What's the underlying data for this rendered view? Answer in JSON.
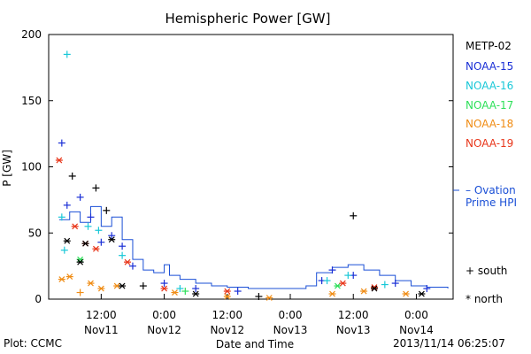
{
  "footer": {
    "left": "Plot: CCMC",
    "right": "2013/11/14 06:25:07"
  },
  "chart_data": {
    "type": "scatter",
    "title": "Hemispheric Power [GW]",
    "xlabel": "Date and Time",
    "ylabel": "P [GW]",
    "ylim": [
      0,
      200
    ],
    "yticks": [
      0,
      50,
      100,
      150,
      200
    ],
    "xlim": [
      "2013-11-11 02:00",
      "2013-11-14 07:00"
    ],
    "xticks": [
      {
        "time": "2013-11-11 12:00",
        "line1": "12:00",
        "line2": "Nov11"
      },
      {
        "time": "2013-11-12 00:00",
        "line1": "0:00",
        "line2": "Nov12"
      },
      {
        "time": "2013-11-12 12:00",
        "line1": "12:00",
        "line2": "Nov12"
      },
      {
        "time": "2013-11-13 00:00",
        "line1": "0:00",
        "line2": "Nov13"
      },
      {
        "time": "2013-11-13 12:00",
        "line1": "12:00",
        "line2": "Nov13"
      },
      {
        "time": "2013-11-14 00:00",
        "line1": "0:00",
        "line2": "Nov14"
      }
    ],
    "grid": false,
    "legend_position": "right",
    "marker_legend": [
      {
        "symbol": "+",
        "label": "south"
      },
      {
        "symbol": "*",
        "label": "north"
      }
    ],
    "series": [
      {
        "name": "METP-02",
        "color": "#000000",
        "points": []
      },
      {
        "name": "NOAA-15",
        "color": "#1a2fd6",
        "points": [
          {
            "t": "2013-11-11 04:30",
            "y": 118,
            "m": "+"
          },
          {
            "t": "2013-11-11 05:30",
            "y": 71,
            "m": "+"
          },
          {
            "t": "2013-11-11 08:00",
            "y": 77,
            "m": "+"
          },
          {
            "t": "2013-11-11 10:00",
            "y": 62,
            "m": "+"
          },
          {
            "t": "2013-11-11 12:00",
            "y": 43,
            "m": "+"
          },
          {
            "t": "2013-11-11 14:00",
            "y": 48,
            "m": "+"
          },
          {
            "t": "2013-11-11 16:00",
            "y": 40,
            "m": "+"
          },
          {
            "t": "2013-11-11 18:00",
            "y": 25,
            "m": "+"
          },
          {
            "t": "2013-11-12 00:00",
            "y": 12,
            "m": "+"
          },
          {
            "t": "2013-11-12 06:00",
            "y": 8,
            "m": "+"
          },
          {
            "t": "2013-11-12 14:00",
            "y": 6,
            "m": "+"
          },
          {
            "t": "2013-11-13 06:00",
            "y": 14,
            "m": "+"
          },
          {
            "t": "2013-11-13 08:00",
            "y": 22,
            "m": "+"
          },
          {
            "t": "2013-11-13 12:00",
            "y": 18,
            "m": "+"
          },
          {
            "t": "2013-11-13 20:00",
            "y": 12,
            "m": "+"
          },
          {
            "t": "2013-11-14 02:00",
            "y": 8,
            "m": "+"
          }
        ]
      },
      {
        "name": "NOAA-16",
        "color": "#19c8d8",
        "points": [
          {
            "t": "2013-11-11 05:30",
            "y": 185,
            "m": "+"
          },
          {
            "t": "2013-11-11 04:30",
            "y": 62,
            "m": "+"
          },
          {
            "t": "2013-11-11 05:00",
            "y": 37,
            "m": "+"
          },
          {
            "t": "2013-11-11 09:30",
            "y": 55,
            "m": "+"
          },
          {
            "t": "2013-11-11 11:30",
            "y": 52,
            "m": "+"
          },
          {
            "t": "2013-11-11 16:00",
            "y": 33,
            "m": "+"
          },
          {
            "t": "2013-11-12 03:00",
            "y": 8,
            "m": "+"
          },
          {
            "t": "2013-11-13 07:00",
            "y": 14,
            "m": "+"
          },
          {
            "t": "2013-11-13 11:00",
            "y": 18,
            "m": "+"
          },
          {
            "t": "2013-11-13 18:00",
            "y": 11,
            "m": "+"
          }
        ]
      },
      {
        "name": "NOAA-17",
        "color": "#2ee05a",
        "points": [
          {
            "t": "2013-11-11 08:00",
            "y": 30,
            "m": "*"
          },
          {
            "t": "2013-11-12 04:00",
            "y": 6,
            "m": "+"
          },
          {
            "t": "2013-11-13 09:00",
            "y": 10,
            "m": "*"
          }
        ]
      },
      {
        "name": "NOAA-18",
        "color": "#f08c14",
        "points": [
          {
            "t": "2013-11-11 04:30",
            "y": 15,
            "m": "*"
          },
          {
            "t": "2013-11-11 06:00",
            "y": 17,
            "m": "*"
          },
          {
            "t": "2013-11-11 08:00",
            "y": 5,
            "m": "+"
          },
          {
            "t": "2013-11-11 10:00",
            "y": 12,
            "m": "*"
          },
          {
            "t": "2013-11-11 12:00",
            "y": 8,
            "m": "*"
          },
          {
            "t": "2013-11-11 15:00",
            "y": 10,
            "m": "*"
          },
          {
            "t": "2013-11-12 02:00",
            "y": 5,
            "m": "*"
          },
          {
            "t": "2013-11-12 12:00",
            "y": 2,
            "m": "*"
          },
          {
            "t": "2013-11-12 20:00",
            "y": 1,
            "m": "*"
          },
          {
            "t": "2013-11-13 08:00",
            "y": 4,
            "m": "*"
          },
          {
            "t": "2013-11-13 14:00",
            "y": 6,
            "m": "*"
          },
          {
            "t": "2013-11-13 22:00",
            "y": 4,
            "m": "*"
          }
        ]
      },
      {
        "name": "NOAA-19",
        "color": "#e8361a",
        "points": [
          {
            "t": "2013-11-11 04:00",
            "y": 105,
            "m": "*"
          },
          {
            "t": "2013-11-11 07:00",
            "y": 55,
            "m": "*"
          },
          {
            "t": "2013-11-11 09:00",
            "y": 42,
            "m": "*"
          },
          {
            "t": "2013-11-11 11:00",
            "y": 38,
            "m": "*"
          },
          {
            "t": "2013-11-11 17:00",
            "y": 28,
            "m": "*"
          },
          {
            "t": "2013-11-12 00:00",
            "y": 8,
            "m": "*"
          },
          {
            "t": "2013-11-12 12:00",
            "y": 6,
            "m": "*"
          },
          {
            "t": "2013-11-13 10:00",
            "y": 12,
            "m": "*"
          },
          {
            "t": "2013-11-13 16:00",
            "y": 9,
            "m": "*"
          }
        ]
      },
      {
        "name": "METP-02",
        "color": "#000000",
        "points": [
          {
            "t": "2013-11-11 05:30",
            "y": 44,
            "m": "*"
          },
          {
            "t": "2013-11-11 06:30",
            "y": 93,
            "m": "+"
          },
          {
            "t": "2013-11-11 08:00",
            "y": 28,
            "m": "*"
          },
          {
            "t": "2013-11-11 09:00",
            "y": 42,
            "m": "*"
          },
          {
            "t": "2013-11-11 11:00",
            "y": 84,
            "m": "+"
          },
          {
            "t": "2013-11-11 13:00",
            "y": 67,
            "m": "+"
          },
          {
            "t": "2013-11-11 14:00",
            "y": 45,
            "m": "*"
          },
          {
            "t": "2013-11-11 16:00",
            "y": 10,
            "m": "*"
          },
          {
            "t": "2013-11-11 20:00",
            "y": 10,
            "m": "+"
          },
          {
            "t": "2013-11-12 06:00",
            "y": 4,
            "m": "*"
          },
          {
            "t": "2013-11-12 18:00",
            "y": 2,
            "m": "+"
          },
          {
            "t": "2013-11-13 12:00",
            "y": 63,
            "m": "+"
          },
          {
            "t": "2013-11-13 16:00",
            "y": 8,
            "m": "*"
          },
          {
            "t": "2013-11-14 01:00",
            "y": 4,
            "m": "*"
          }
        ]
      }
    ],
    "ovation": {
      "name": "– Ovation",
      "name2": "Prime HPI",
      "color": "#1a4fd6",
      "points": [
        [
          "2013-11-11 04:00",
          60
        ],
        [
          "2013-11-11 06:00",
          66
        ],
        [
          "2013-11-11 08:00",
          58
        ],
        [
          "2013-11-11 10:00",
          70
        ],
        [
          "2013-11-11 12:00",
          55
        ],
        [
          "2013-11-11 14:00",
          62
        ],
        [
          "2013-11-11 16:00",
          45
        ],
        [
          "2013-11-11 18:00",
          30
        ],
        [
          "2013-11-11 20:00",
          22
        ],
        [
          "2013-11-11 22:00",
          20
        ],
        [
          "2013-11-12 00:00",
          26
        ],
        [
          "2013-11-12 01:00",
          18
        ],
        [
          "2013-11-12 03:00",
          15
        ],
        [
          "2013-11-12 06:00",
          12
        ],
        [
          "2013-11-12 09:00",
          10
        ],
        [
          "2013-11-12 12:00",
          9
        ],
        [
          "2013-11-12 16:00",
          8
        ],
        [
          "2013-11-12 20:00",
          8
        ],
        [
          "2013-11-13 00:00",
          8
        ],
        [
          "2013-11-13 03:00",
          10
        ],
        [
          "2013-11-13 05:00",
          20
        ],
        [
          "2013-11-13 08:00",
          24
        ],
        [
          "2013-11-13 11:00",
          26
        ],
        [
          "2013-11-13 14:00",
          22
        ],
        [
          "2013-11-13 17:00",
          18
        ],
        [
          "2013-11-13 20:00",
          14
        ],
        [
          "2013-11-13 23:00",
          10
        ],
        [
          "2013-11-14 02:00",
          9
        ],
        [
          "2013-11-14 06:00",
          8
        ]
      ]
    }
  }
}
